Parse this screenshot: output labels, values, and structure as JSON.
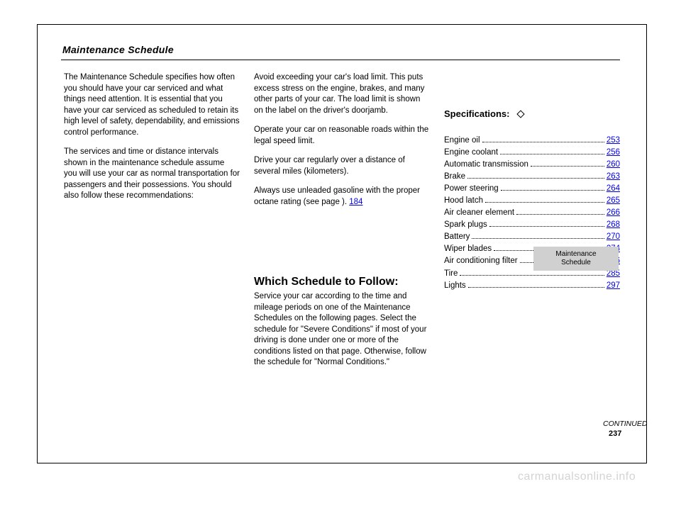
{
  "title": "Maintenance Schedule",
  "columns": {
    "col1_p1": "The Maintenance Schedule specifies how often you should have your car serviced and what things need attention. It is essential that you have your car serviced as scheduled to retain its high level of safety, dependability, and emissions control performance.",
    "col1_p2": "The services and time or distance intervals shown in the maintenance schedule assume you will use your car as normal transportation for passengers and their possessions. You should also follow these recommendations:",
    "col2_b1": "Avoid exceeding your car's load limit. This puts excess stress on the engine, brakes, and many other parts of your car. The load limit is shown on the label on the driver's doorjamb.",
    "col2_b2": "Operate your car on reasonable roads within the legal speed limit.",
    "col2_b3": "Drive your car regularly over a distance of several miles (kilometers).",
    "col2_b4": "Always use unleaded gasoline with the proper octane rating (see page      ).",
    "col2_b4_page": "184",
    "which_heading": "Which Schedule to Follow:",
    "col2_which": "Service your car according to the time and mileage periods on one of the Maintenance Schedules on the following pages. Select the schedule for \"Severe Conditions\" if most of your driving is done under one or more of the conditions listed on that page. Otherwise, follow the schedule for \"Normal Conditions.\"",
    "specs_heading": "Specifications:",
    "specs": [
      {
        "label": "Engine oil",
        "href": "253"
      },
      {
        "label": "Engine coolant",
        "href": "256"
      },
      {
        "label": "Automatic transmission",
        "href": "260"
      },
      {
        "label": "Brake",
        "href": "263"
      },
      {
        "label": "Power steering",
        "href": "264"
      },
      {
        "label": "Hood latch",
        "href": "265"
      },
      {
        "label": "Air cleaner element",
        "href": "266"
      },
      {
        "label": "Spark plugs",
        "href": "268"
      },
      {
        "label": "Battery",
        "href": "270"
      },
      {
        "label": "Wiper blades",
        "href": "274"
      },
      {
        "label": "Air conditioning filter",
        "href": "276"
      },
      {
        "label": "Tire",
        "href": "285"
      },
      {
        "label": "Lights",
        "href": "297"
      }
    ],
    "box_line1": "Maintenance",
    "box_line2": "Schedule",
    "continued": "CONTINUED",
    "page_number": "237",
    "watermark": "carmanualsonline.info"
  },
  "colors": {
    "link_color": "#0000ee",
    "box_bg": "#d0d0d0",
    "watermark_color": "#d3d3d3"
  }
}
